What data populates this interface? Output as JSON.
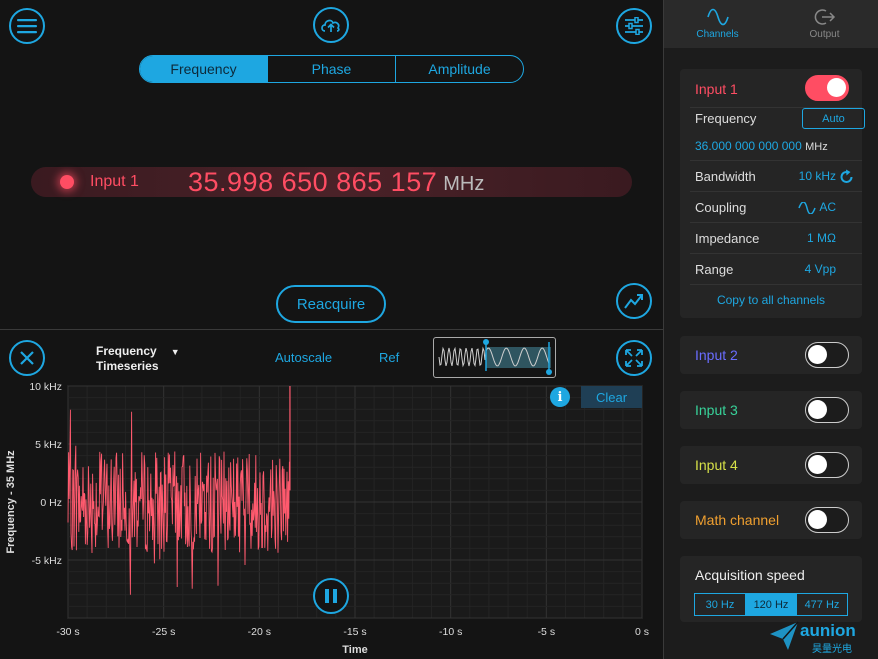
{
  "colors": {
    "accent": "#1ea7e1",
    "input1": "#ff4d63",
    "input2": "#6a6dff",
    "input3": "#38d39a",
    "input4": "#d6e048",
    "math": "#f0a030"
  },
  "top": {
    "icons": {
      "menu": "menu-icon",
      "cloud": "cloud-upload-icon",
      "settings": "sliders-icon",
      "trend": "trend-icon"
    },
    "tabs": [
      {
        "label": "Frequency",
        "active": true
      },
      {
        "label": "Phase",
        "active": false
      },
      {
        "label": "Amplitude",
        "active": false
      }
    ],
    "readout": {
      "channel": "Input 1",
      "value": "35.998 650 865 157",
      "unit": "MHz"
    },
    "reacquire_label": "Reacquire"
  },
  "plot": {
    "type_line1": "Frequency",
    "type_line2": "Timeseries",
    "autoscale_label": "Autoscale",
    "ref_label": "Ref",
    "clear_label": "Clear",
    "info_label": "i"
  },
  "chart_data": {
    "type": "line",
    "xlabel": "Time",
    "ylabel": "Frequency - 35 MHz",
    "xlim": [
      -30,
      0
    ],
    "ylim": [
      -10,
      10
    ],
    "x_ticks": [
      "-30 s",
      "-25 s",
      "-20 s",
      "-15 s",
      "-10 s",
      "-5 s",
      "0 s"
    ],
    "y_ticks": [
      "10 kHz",
      "5 kHz",
      "0 Hz",
      "-5 kHz"
    ],
    "y_tick_values": [
      10,
      5,
      0,
      -5
    ],
    "grid": true,
    "series": [
      {
        "color": "#ff5a6e",
        "x_start": -30,
        "x_end": -18.4,
        "mean": 0,
        "amplitude": 8
      }
    ]
  },
  "sidebar": {
    "tabs": [
      {
        "label": "Channels",
        "icon": "sine-wave-icon",
        "active": true
      },
      {
        "label": "Output",
        "icon": "output-icon",
        "active": false
      }
    ],
    "input1": {
      "title": "Input 1",
      "enabled": true,
      "frequency_label": "Frequency",
      "frequency_mode": "Auto",
      "frequency_value": "36.000 000 000 000",
      "frequency_unit": "MHz",
      "bandwidth_label": "Bandwidth",
      "bandwidth_value": "10 kHz",
      "coupling_label": "Coupling",
      "coupling_value": "AC",
      "impedance_label": "Impedance",
      "impedance_value": "1 MΩ",
      "range_label": "Range",
      "range_value": "4 Vpp",
      "copy_label": "Copy to all channels"
    },
    "channels": [
      {
        "label": "Input 2",
        "enabled": false
      },
      {
        "label": "Input 3",
        "enabled": false
      },
      {
        "label": "Input 4",
        "enabled": false
      },
      {
        "label": "Math channel",
        "enabled": false
      }
    ],
    "acquisition": {
      "title": "Acquisition speed",
      "options": [
        {
          "label": "30 Hz",
          "active": false
        },
        {
          "label": "120 Hz",
          "active": true
        },
        {
          "label": "477 Hz",
          "active": false
        }
      ]
    }
  },
  "watermark": {
    "brand": "aunion",
    "sub": "昊量光电"
  }
}
